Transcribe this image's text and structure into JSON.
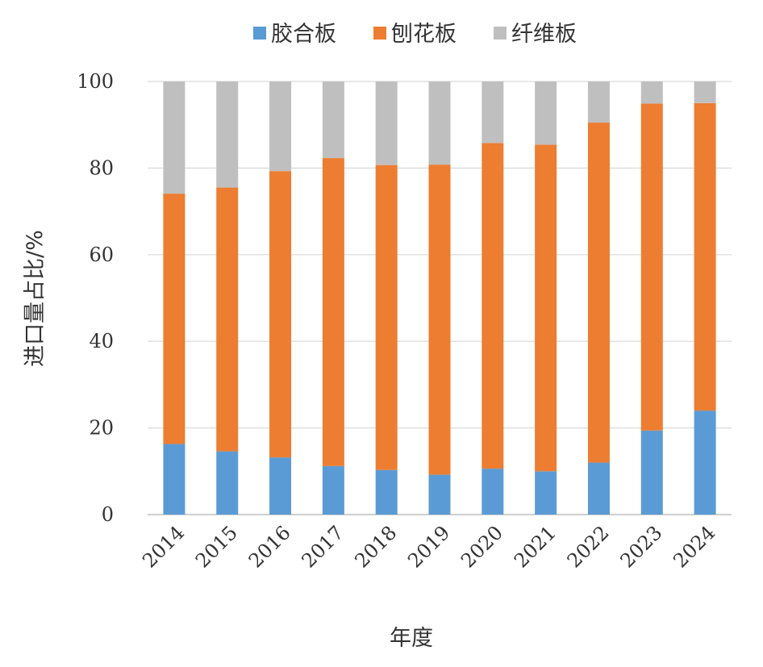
{
  "chart_data": {
    "type": "bar",
    "stacked": true,
    "categories": [
      "2014",
      "2015",
      "2016",
      "2017",
      "2018",
      "2019",
      "2020",
      "2021",
      "2022",
      "2023",
      "2024"
    ],
    "series": [
      {
        "name": "胶合板",
        "color": "#5B9BD5",
        "values": [
          16.3,
          14.6,
          13.2,
          11.2,
          10.3,
          9.2,
          10.6,
          10.0,
          12.0,
          19.4,
          24.0
        ]
      },
      {
        "name": "刨花板",
        "color": "#ED7D31",
        "values": [
          57.8,
          60.9,
          66.1,
          71.1,
          70.4,
          71.6,
          75.2,
          75.4,
          78.5,
          75.5,
          71.0
        ]
      },
      {
        "name": "纤维板",
        "color": "#BFBFBF",
        "values": [
          25.9,
          24.5,
          20.7,
          17.7,
          19.3,
          19.2,
          14.2,
          14.6,
          9.5,
          5.1,
          5.0
        ]
      }
    ],
    "title": "",
    "xlabel": "年度",
    "ylabel": "进口量占比/%",
    "ylim": [
      0,
      100
    ],
    "yticks": [
      0,
      20,
      40,
      60,
      80,
      100
    ],
    "grid": true,
    "legend": "top-center"
  }
}
